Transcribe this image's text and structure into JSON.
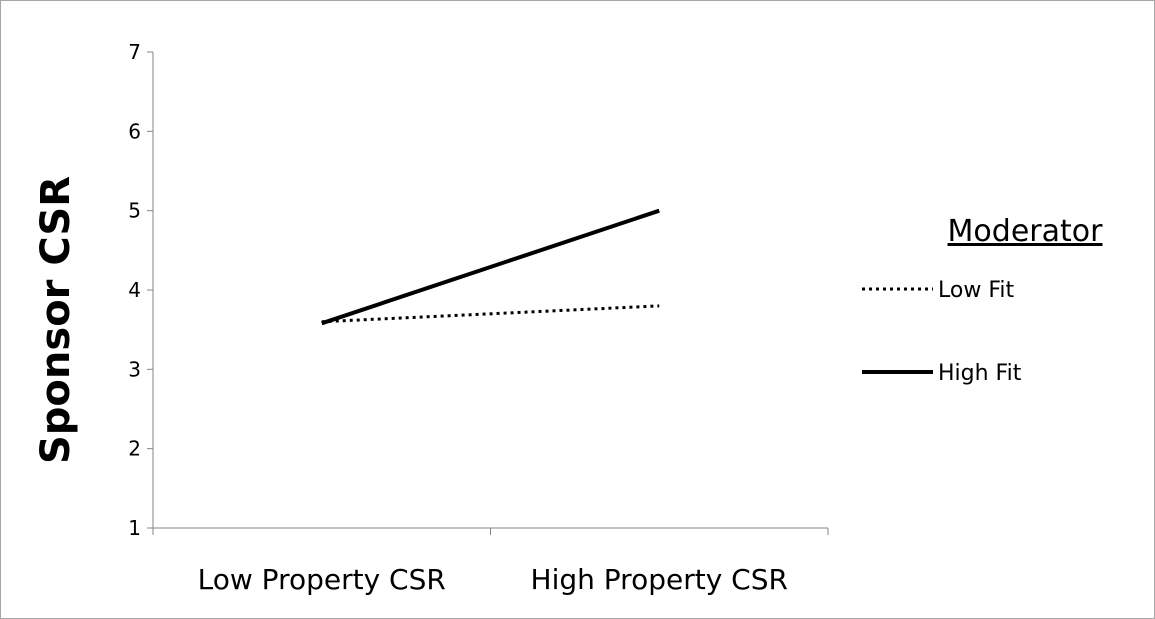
{
  "chart_data": {
    "type": "line",
    "categories": [
      "Low Property CSR",
      "High Property CSR"
    ],
    "series": [
      {
        "name": "Low Fit",
        "values": [
          3.6,
          3.8
        ],
        "style": "dotted",
        "color": "#000000"
      },
      {
        "name": "High Fit",
        "values": [
          3.58,
          5.0
        ],
        "style": "solid",
        "color": "#000000"
      }
    ],
    "title": "",
    "xlabel": "",
    "ylabel": "Sponsor CSR",
    "ylim": [
      1,
      7
    ],
    "yticks": [
      "1",
      "2",
      "3",
      "4",
      "5",
      "6",
      "7"
    ],
    "grid": false,
    "legend": {
      "title": "Moderator",
      "placement": "right"
    }
  }
}
